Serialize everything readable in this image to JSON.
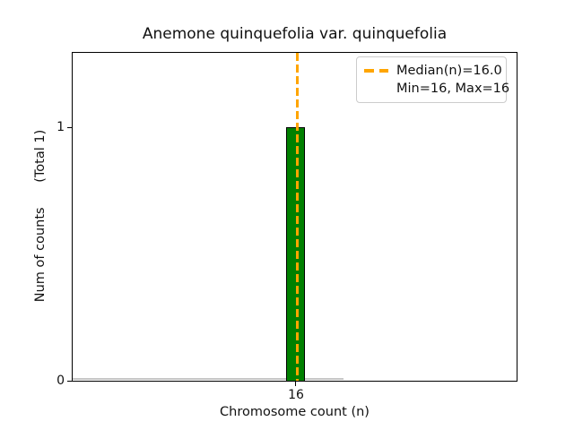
{
  "figure": {
    "title": "Anemone quinquefolia var. quinquefolia"
  },
  "axes": {
    "xlabel": "Chromosome count (n)",
    "ylabel": "Num of counts      (Total 1)",
    "xtick_labels": [
      "16"
    ],
    "ytick_labels": [
      "0",
      "1"
    ]
  },
  "legend": {
    "median_label": "Median(n)=16.0",
    "minmax_label": "Min=16, Max=16"
  },
  "colors": {
    "bar_fill": "#008000",
    "bar_edge": "#000000",
    "median_line": "#FFA500",
    "zero_bin_baseline": "#c6c6c6",
    "legend_border": "#cccccc"
  },
  "chart_data": {
    "type": "bar",
    "title": "Anemone quinquefolia var. quinquefolia",
    "xlabel": "Chromosome count (n)",
    "ylabel": "Num of counts (Total 1)",
    "categories": [
      16
    ],
    "values": [
      1
    ],
    "total_counts": 1,
    "stats": {
      "median_n": 16.0,
      "min_n": 16,
      "max_n": 16
    },
    "median_line": {
      "x": 16,
      "color": "#FFA500",
      "linestyle": "dashed"
    },
    "bar_style": {
      "fill": "#008000",
      "edge": "#000000"
    },
    "xticks": [
      16
    ],
    "yticks": [
      0,
      1
    ],
    "ylim": [
      0,
      1.3
    ],
    "grid": false,
    "legend_position": "upper right",
    "legend_entries": [
      "Median(n)=16.0",
      "Min=16, Max=16"
    ]
  }
}
